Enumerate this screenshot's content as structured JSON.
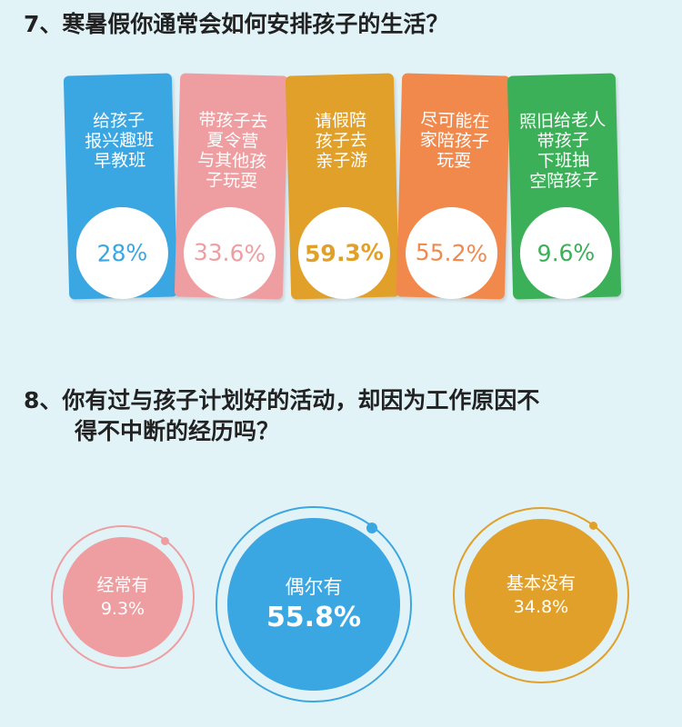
{
  "q7": {
    "title": "7、寒暑假你通常会如何安排孩子的生活？"
  },
  "q8": {
    "title_line1": "8、你有过与孩子计划好的活动，却因为工作原因不",
    "title_line2": "得不中断的经历吗？"
  },
  "chart_data": [
    {
      "type": "bar",
      "title": "7、寒暑假你通常会如何安排孩子的生活？",
      "categories": [
        "给孩子\n报兴趣班\n早教班",
        "带孩子去\n夏令营\n与其他孩\n子玩耍",
        "请假陪\n孩子去\n亲子游",
        "尽可能在\n家陪孩子\n玩耍",
        "照旧给老人\n带孩子\n下班抽\n空陪孩子"
      ],
      "values": [
        28,
        33.6,
        59.3,
        55.2,
        9.6
      ],
      "value_labels": [
        "28%",
        "33.6%",
        "59.3%",
        "55.2%",
        "9.6%"
      ],
      "colors": [
        "#3aa6e2",
        "#ee9ea0",
        "#e0a02a",
        "#f1894d",
        "#3cb058"
      ],
      "unit": "%"
    },
    {
      "type": "scatter",
      "title": "8、你有过与孩子计划好的活动，却因为工作原因不得不中断的经历吗？",
      "categories": [
        "经常有",
        "偶尔有",
        "基本没有"
      ],
      "values": [
        9.3,
        55.8,
        34.8
      ],
      "value_labels": [
        "9.3%",
        "55.8%",
        "34.8%"
      ],
      "colors": [
        "#ee9ea0",
        "#3aa6e2",
        "#e0a02a"
      ],
      "unit": "%"
    }
  ]
}
